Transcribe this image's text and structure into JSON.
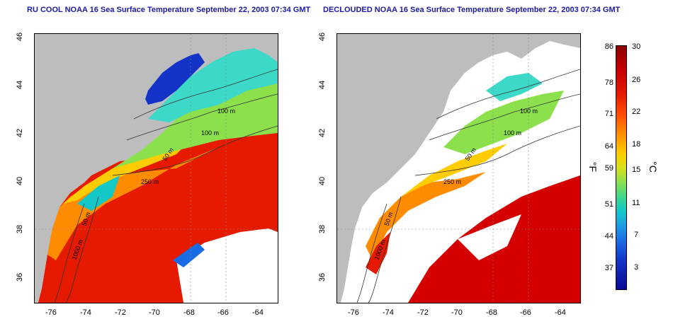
{
  "left_panel": {
    "title": "RU COOL NOAA 16 Sea Surface Temperature September 22, 2003 07:34 GMT",
    "contour_labels": [
      "100 m",
      "100 m",
      "50 m",
      "250 m",
      "50 m",
      "1000 m"
    ]
  },
  "right_panel": {
    "title": "DECLOUDED NOAA 16 Sea Surface Temperature September 22, 2003 07:34 GMT",
    "contour_labels": [
      "100 m",
      "100 m",
      "50 m",
      "250 m",
      "50 m",
      "1000 m"
    ]
  },
  "y_ticks": [
    "46",
    "44",
    "42",
    "40",
    "38",
    "36"
  ],
  "x_ticks": [
    "-76",
    "-74",
    "-72",
    "-70",
    "-68",
    "-66",
    "-64"
  ],
  "colorbar": {
    "fahrenheit_labels": [
      "86",
      "78",
      "71",
      "64",
      "59",
      "51",
      "44",
      "37"
    ],
    "celsius_labels": [
      "30",
      "26",
      "22",
      "18",
      "15",
      "11",
      "7",
      "3"
    ],
    "fahrenheit_unit": "°F",
    "celsius_unit": "°C"
  },
  "colors": {
    "land": "#bdbdbd",
    "cloud": "#ffffff",
    "warm": "#e51a00",
    "cool": "#1a6ce6",
    "title": "#1a1aa6"
  }
}
